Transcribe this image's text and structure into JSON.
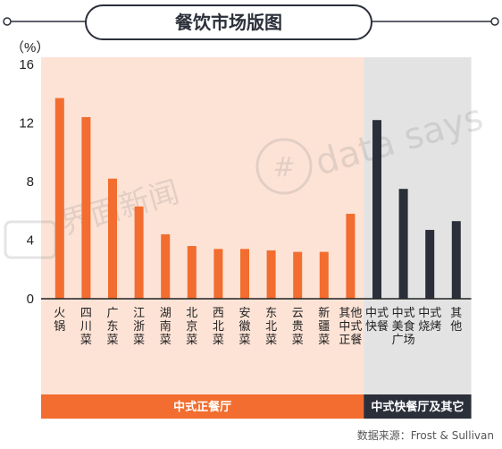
{
  "chart_data": {
    "type": "bar",
    "title": "餐饮市场版图",
    "ylabel": "（%）",
    "ylim": [
      0,
      16
    ],
    "yticks": [
      "0",
      "4",
      "8",
      "12",
      "16"
    ],
    "grid": false,
    "categories": [
      "火锅",
      "四川菜",
      "广东菜",
      "江浙菜",
      "湖南菜",
      "北京菜",
      "西北菜",
      "安徽菜",
      "东北菜",
      "云贵菜",
      "新疆菜",
      "其他中式正餐",
      "中式快餐",
      "中式美食广场",
      "中式烧烤",
      "其他"
    ],
    "values": [
      13.7,
      12.4,
      8.2,
      6.3,
      4.4,
      3.6,
      3.4,
      3.4,
      3.3,
      3.2,
      3.2,
      5.8,
      12.2,
      7.5,
      4.7,
      5.3
    ],
    "groups": [
      {
        "label": "中式正餐厅",
        "count": 12,
        "bar_color": "#f26d2f",
        "bg_color": "#fde3d6",
        "band_color": "#f26d2f"
      },
      {
        "label": "中式快餐厅及其它",
        "count": 4,
        "bar_color": "#2b2f3a",
        "bg_color": "#e3e3e3",
        "band_color": "#2b2f3a"
      }
    ]
  },
  "source": "数据来源：Frost & Sullivan",
  "watermarks": [
    "界面新闻",
    "data says"
  ]
}
